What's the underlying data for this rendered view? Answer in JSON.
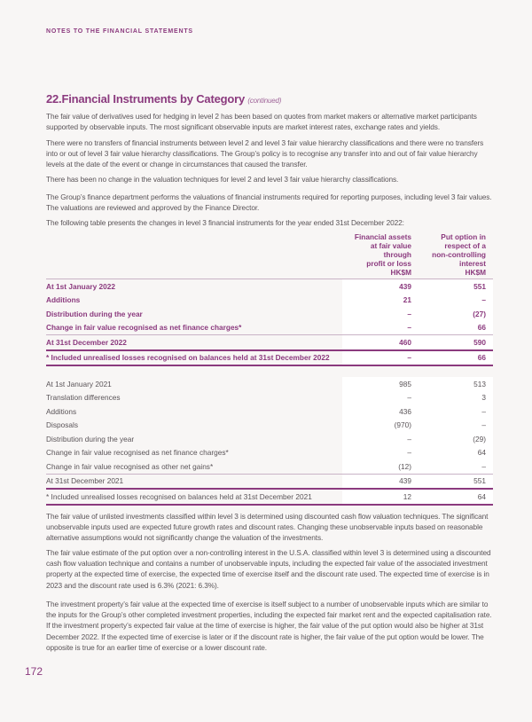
{
  "header": {
    "running_title": "NOTES TO THE FINANCIAL STATEMENTS"
  },
  "section": {
    "title": "22.Financial Instruments by Category",
    "continued": "(continued)"
  },
  "paragraphs_top": [
    "The fair value of derivatives used for hedging in level 2 has been based on quotes from market makers or alternative market participants supported by observable inputs. The most significant observable inputs are market interest rates, exchange rates and yields.",
    "There were no transfers of financial instruments between level 2 and level 3 fair value hierarchy classifications and there were no transfers into or out of level 3 fair value hierarchy classifications. The Group’s policy is to recognise any transfer into and out of fair value hierarchy levels at the date of the event or change in circumstances that caused the transfer.",
    "There has been no change in the valuation techniques for level 2 and level 3 fair value hierarchy classifications.",
    "The Group’s finance department performs the valuations of financial instruments required for reporting purposes, including level 3 fair values. The valuations are reviewed and approved by the Finance Director.",
    "The following table presents the changes in level 3 financial instruments for the year ended 31st December 2022:"
  ],
  "table": {
    "columns": [
      "Financial assets at fair value through profit or loss HK$M",
      "Put option in respect of a non-controlling interest HK$M"
    ],
    "col1_lines": [
      "Financial assets",
      "at fair value",
      "through",
      "profit or loss",
      "HK$M"
    ],
    "col2_lines": [
      "Put option in",
      "respect of a",
      "non-controlling",
      "interest",
      "HK$M"
    ],
    "rows_2022": [
      {
        "label": "At 1st January 2022",
        "v1": "439",
        "v2": "551"
      },
      {
        "label": "Additions",
        "v1": "21",
        "v2": "–"
      },
      {
        "label": "Distribution during the year",
        "v1": "–",
        "v2": "(27)"
      },
      {
        "label": "Change in fair value recognised as net finance charges*",
        "v1": "–",
        "v2": "66"
      },
      {
        "label": "At 31st December 2022",
        "v1": "460",
        "v2": "590"
      },
      {
        "label": "* Included unrealised losses recognised on balances held at 31st December 2022",
        "v1": "–",
        "v2": "66"
      }
    ],
    "rows_2021": [
      {
        "label": "At 1st January 2021",
        "v1": "985",
        "v2": "513"
      },
      {
        "label": "Translation differences",
        "v1": "–",
        "v2": "3"
      },
      {
        "label": "Additions",
        "v1": "436",
        "v2": "–"
      },
      {
        "label": "Disposals",
        "v1": "(970)",
        "v2": "–"
      },
      {
        "label": "Distribution during the year",
        "v1": "–",
        "v2": "(29)"
      },
      {
        "label": "Change in fair value recognised as net finance charges*",
        "v1": "–",
        "v2": "64"
      },
      {
        "label": "Change in fair value recognised as other net gains*",
        "v1": "(12)",
        "v2": "–"
      },
      {
        "label": "At 31st December 2021",
        "v1": "439",
        "v2": "551"
      },
      {
        "label": "* Included unrealised losses recognised on balances held at 31st December 2021",
        "v1": "12",
        "v2": "64"
      }
    ]
  },
  "paragraphs_bottom": [
    "The fair value of unlisted investments classified within level 3 is determined using discounted cash flow valuation techniques. The significant unobservable inputs used are expected future growth rates and discount rates. Changing these unobservable inputs based on reasonable alternative assumptions would not significantly change the valuation of the investments.",
    "The fair value estimate of the put option over a non-controlling interest in the U.S.A. classified within level 3 is determined using a discounted cash flow valuation technique and contains a number of unobservable inputs, including the expected fair value of the associated investment property at the expected time of exercise, the expected time of exercise itself and the discount rate used. The expected time of exercise is in 2023 and the discount rate used is 6.3% (2021: 6.3%).",
    "The investment property’s fair value at the expected time of exercise is itself subject to a number of unobservable inputs which are similar to the inputs for the Group’s other completed investment properties, including the expected fair market rent and the expected capitalisation rate. If the investment property’s expected fair value at the time of exercise is higher, the fair value of the put option would also be higher at 31st December 2022. If the expected time of exercise is later or if the discount rate is higher, the fair value of the put option would be lower. The opposite is true for an earlier time of exercise or a lower discount rate."
  ],
  "footer": {
    "page_number": "172"
  },
  "colors": {
    "accent": "#8b3a7e",
    "body_text": "#5a5458",
    "background": "#f8f6f5"
  }
}
